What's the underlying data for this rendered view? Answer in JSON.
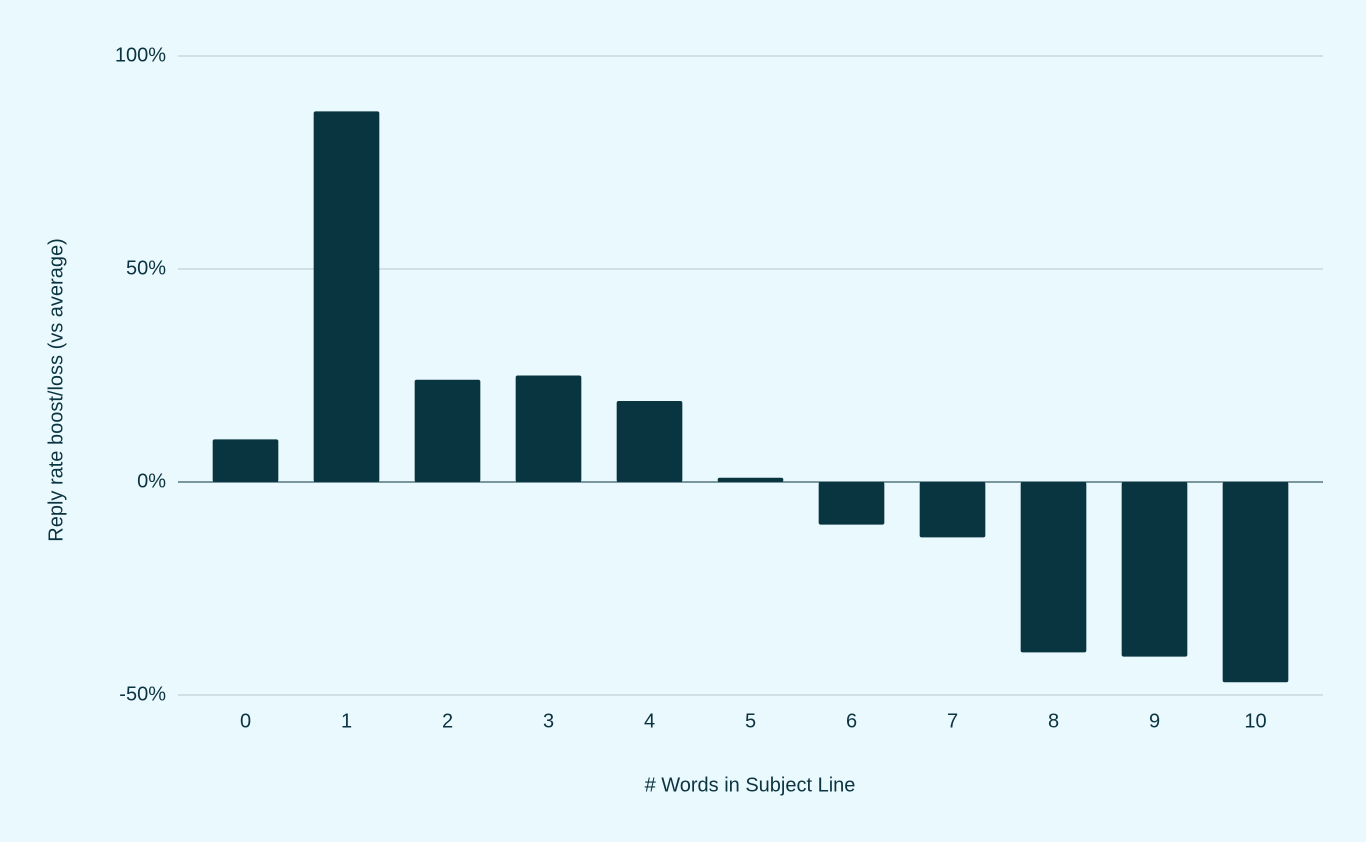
{
  "chart_data": {
    "type": "bar",
    "categories": [
      "0",
      "1",
      "2",
      "3",
      "4",
      "5",
      "6",
      "7",
      "8",
      "9",
      "10"
    ],
    "values": [
      10,
      87,
      24,
      25,
      19,
      1,
      -10,
      -13,
      -40,
      -41,
      -47
    ],
    "color": "#08353f",
    "xlabel": "# Words in Subject Line",
    "ylabel": "Reply rate boost/loss (vs average)",
    "ylim": [
      -50,
      100
    ],
    "yticks": [
      {
        "value": -50,
        "label": "-50%"
      },
      {
        "value": 0,
        "label": "0%"
      },
      {
        "value": 50,
        "label": "50%"
      },
      {
        "value": 100,
        "label": "100%"
      }
    ],
    "grid": true
  }
}
